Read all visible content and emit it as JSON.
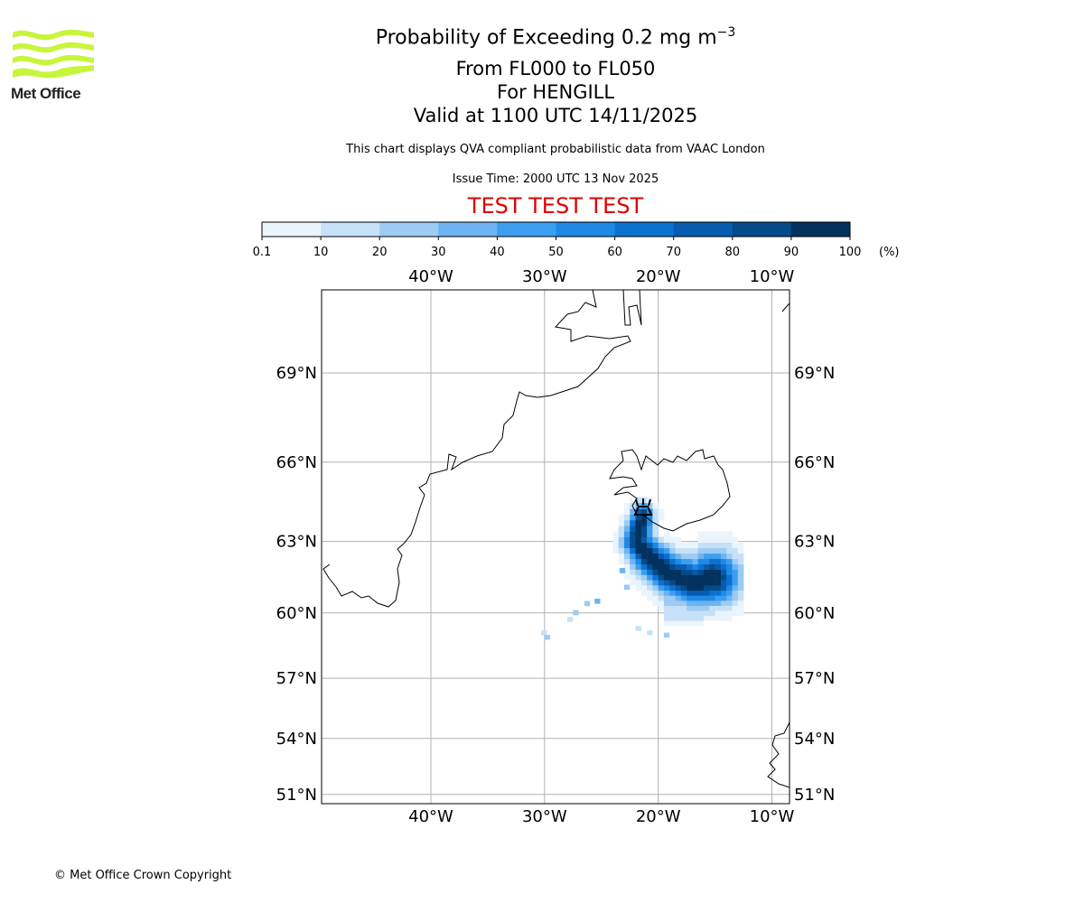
{
  "logo": {
    "text": "Met Office"
  },
  "header": {
    "title": "Probability of Exceeding 0.2 mg m",
    "title_sup": "−3",
    "levels": "From FL000 to FL050",
    "location": "For HENGILL",
    "valid": "Valid at 1100 UTC 14/11/2025",
    "note": "This chart displays QVA compliant probabilistic data from VAAC London",
    "issue": "Issue Time: 2000 UTC 13 Nov 2025",
    "test_banner": "TEST TEST TEST"
  },
  "footer": {
    "copyright": "© Met Office Crown Copyright"
  },
  "chart_data": {
    "type": "heatmap",
    "projection": "mercator",
    "lon_range": [
      -49.6,
      -8.4
    ],
    "lat_range": [
      50.5,
      71.2
    ],
    "grid": true,
    "colorbar": {
      "unit": "(%)",
      "ticks": [
        "0.1",
        "10",
        "20",
        "30",
        "40",
        "50",
        "60",
        "70",
        "80",
        "90",
        "100"
      ],
      "colors": [
        "#eaf4fd",
        "#c6e1f7",
        "#9ccbf3",
        "#6cb4f1",
        "#3c9ef0",
        "#1e89e6",
        "#0b71d1",
        "#075caf",
        "#044b8a",
        "#03325e"
      ]
    },
    "x_ticks": [
      {
        "lon": -40,
        "label": "40°W"
      },
      {
        "lon": -30,
        "label": "30°W"
      },
      {
        "lon": -20,
        "label": "20°W"
      },
      {
        "lon": -10,
        "label": "10°W"
      }
    ],
    "y_ticks": [
      {
        "lat": 69,
        "label": "69°N"
      },
      {
        "lat": 66,
        "label": "66°N"
      },
      {
        "lat": 63,
        "label": "63°N"
      },
      {
        "lat": 60,
        "label": "60°N"
      },
      {
        "lat": 57,
        "label": "57°N"
      },
      {
        "lat": 54,
        "label": "54°N"
      },
      {
        "lat": 51,
        "label": "51°N"
      }
    ],
    "volcano": {
      "name": "HENGILL",
      "lon": -21.3,
      "lat": 64.05
    },
    "plume_axis": [
      [
        -21.4,
        64.0
      ],
      [
        -21.9,
        63.0
      ],
      [
        -20.7,
        62.3
      ],
      [
        -18.7,
        61.6
      ],
      [
        -16.7,
        61.3
      ],
      [
        -15.2,
        61.5
      ]
    ],
    "outliers": [
      [
        -30.3,
        59.0,
        10
      ],
      [
        -30.0,
        58.8,
        20
      ],
      [
        -28.0,
        59.6,
        10
      ],
      [
        -27.5,
        59.9,
        20
      ],
      [
        -26.5,
        60.3,
        20
      ],
      [
        -25.6,
        60.4,
        30
      ],
      [
        -23.0,
        61.0,
        20
      ],
      [
        -23.4,
        61.7,
        30
      ],
      [
        -22.0,
        59.2,
        10
      ],
      [
        -21.0,
        59.0,
        10
      ],
      [
        -19.5,
        58.9,
        20
      ]
    ]
  }
}
